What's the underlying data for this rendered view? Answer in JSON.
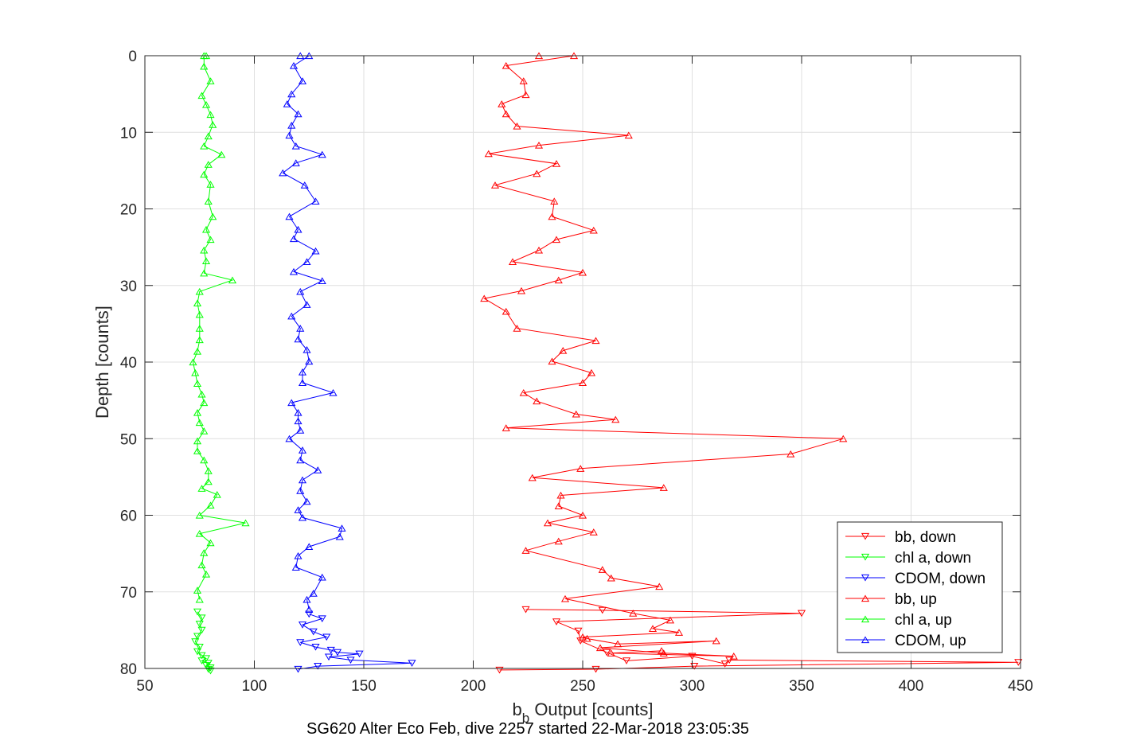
{
  "chart_data": {
    "type": "line",
    "xlabel_main": "b",
    "xlabel_sub": "b",
    "xlabel_rest": " Output [counts]",
    "ylabel": "Depth [counts]",
    "caption": "SG620 Alter Eco Feb, dive 2257 started 22-Mar-2018 23:05:35",
    "xlim": [
      50,
      450
    ],
    "ylim": [
      0,
      80
    ],
    "y_reversed": true,
    "x_ticks": [
      50,
      100,
      150,
      200,
      250,
      300,
      350,
      400,
      450
    ],
    "y_ticks": [
      0,
      10,
      20,
      30,
      40,
      50,
      60,
      70,
      80
    ],
    "grid": true,
    "legend_position": "bottom-right",
    "series": [
      {
        "name": "bb, down",
        "color": "#ff0000",
        "marker": "triangle-down",
        "x": [
          224,
          259,
          350,
          238,
          248,
          249,
          261,
          270,
          300,
          315,
          317,
          449,
          301,
          256,
          212
        ],
        "y": [
          72.3,
          72.4,
          72.8,
          73.9,
          75.1,
          76.4,
          77.9,
          79.0,
          78.4,
          79.4,
          78.9,
          79.2,
          79.7,
          80.1,
          80.2
        ]
      },
      {
        "name": "chl a, down",
        "color": "#00ff00",
        "marker": "triangle-down",
        "x": [
          74,
          76,
          75,
          76,
          74,
          73,
          75,
          74,
          76,
          78,
          76,
          79,
          78,
          80,
          79,
          80
        ],
        "y": [
          72.6,
          73.4,
          74.2,
          75.0,
          75.8,
          76.5,
          77.2,
          77.8,
          78.3,
          78.7,
          79.0,
          79.3,
          79.6,
          79.9,
          80.1,
          80.3
        ]
      },
      {
        "name": "CDOM, down",
        "color": "#0000ff",
        "marker": "triangle-down",
        "x": [
          125,
          131,
          122,
          127,
          133,
          121,
          128,
          135,
          138,
          148,
          134,
          144,
          172,
          129,
          120
        ],
        "y": [
          72.9,
          73.5,
          74.3,
          75.2,
          75.9,
          76.6,
          77.2,
          77.6,
          77.9,
          78.1,
          78.5,
          78.9,
          79.3,
          79.7,
          80.1
        ]
      },
      {
        "name": "bb, up",
        "color": "#ff0000",
        "marker": "triangle-up",
        "x": [
          230,
          246,
          215,
          223,
          224,
          213,
          215,
          220,
          271,
          230,
          207,
          238,
          229,
          210,
          237,
          236,
          255,
          238,
          230,
          218,
          250,
          239,
          222,
          205,
          215,
          220,
          256,
          241,
          236,
          254,
          250,
          223,
          229,
          247,
          265,
          215,
          369,
          345,
          249,
          227,
          287,
          240,
          239,
          250,
          234,
          255,
          239,
          224,
          259,
          263,
          285,
          242,
          273,
          290,
          282,
          294,
          250,
          252,
          266,
          311,
          258,
          287,
          319,
          263,
          286
        ],
        "y": [
          0,
          0,
          1.3,
          3.3,
          5.1,
          6.3,
          7.6,
          9.2,
          10.4,
          11.7,
          12.8,
          14.1,
          15.4,
          16.9,
          19.0,
          21.0,
          22.8,
          24.0,
          25.4,
          26.9,
          28.3,
          29.3,
          30.7,
          31.7,
          33.4,
          35.6,
          37.2,
          38.5,
          39.9,
          41.4,
          42.7,
          44.0,
          45.1,
          46.8,
          47.5,
          48.6,
          50.0,
          52.0,
          53.9,
          55.1,
          56.4,
          57.4,
          58.8,
          60.0,
          61.0,
          62.2,
          63.4,
          64.6,
          67.1,
          68.2,
          69.3,
          70.9,
          72.8,
          73.7,
          74.8,
          75.3,
          75.9,
          76.1,
          76.8,
          76.4,
          77.3,
          78.0,
          78.4,
          78.0,
          77.7
        ]
      },
      {
        "name": "chl a, up",
        "color": "#00ff00",
        "marker": "triangle-up",
        "x": [
          78,
          77,
          77,
          80,
          76,
          78,
          80,
          81,
          79,
          77,
          85,
          79,
          77,
          80,
          79,
          81,
          78,
          80,
          77,
          78,
          77,
          90,
          75,
          74,
          75,
          75,
          75,
          74,
          72,
          73,
          74,
          76,
          77,
          74,
          75,
          77,
          74,
          74,
          77,
          79,
          79,
          76,
          83,
          80,
          75,
          96,
          75,
          80,
          77,
          76,
          78,
          74,
          75
        ],
        "y": [
          0,
          0,
          1.4,
          3.3,
          5.2,
          6.4,
          7.7,
          9.0,
          10.5,
          11.8,
          12.9,
          14.2,
          15.5,
          16.8,
          19.0,
          21.0,
          22.7,
          24.0,
          25.4,
          26.8,
          28.4,
          29.3,
          30.8,
          32.3,
          33.8,
          35.6,
          37.1,
          38.6,
          40.0,
          41.4,
          42.8,
          44.2,
          45.3,
          46.6,
          47.9,
          49.0,
          50.3,
          51.6,
          52.8,
          54.2,
          55.6,
          56.5,
          57.3,
          58.7,
          60.0,
          61.0,
          62.4,
          63.6,
          64.9,
          66.5,
          67.7,
          69.8,
          71.0
        ]
      },
      {
        "name": "CDOM, up",
        "color": "#0000ff",
        "marker": "triangle-up",
        "x": [
          121,
          125,
          118,
          122,
          117,
          115,
          120,
          117,
          116,
          119,
          131,
          119,
          113,
          123,
          128,
          116,
          120,
          118,
          128,
          124,
          118,
          131,
          121,
          124,
          117,
          121,
          120,
          124,
          125,
          122,
          122,
          136,
          117,
          120,
          120,
          121,
          116,
          122,
          121,
          129,
          122,
          121,
          124,
          120,
          122,
          140,
          139,
          125,
          120,
          119,
          131,
          127,
          124,
          125
        ],
        "y": [
          0,
          0,
          1.3,
          3.3,
          5.0,
          6.3,
          7.6,
          9.1,
          10.4,
          11.8,
          12.9,
          14.0,
          15.3,
          16.9,
          19.0,
          21.0,
          22.7,
          23.9,
          25.5,
          26.9,
          28.2,
          29.4,
          30.8,
          32.5,
          34.0,
          35.6,
          37.0,
          38.4,
          39.9,
          41.3,
          42.7,
          44.0,
          45.3,
          46.6,
          47.7,
          48.9,
          50.0,
          51.5,
          52.8,
          54.1,
          55.4,
          56.8,
          58.2,
          59.3,
          60.3,
          61.7,
          62.8,
          64.1,
          65.3,
          66.8,
          68.1,
          70.2,
          71.0,
          72.3
        ]
      }
    ]
  }
}
